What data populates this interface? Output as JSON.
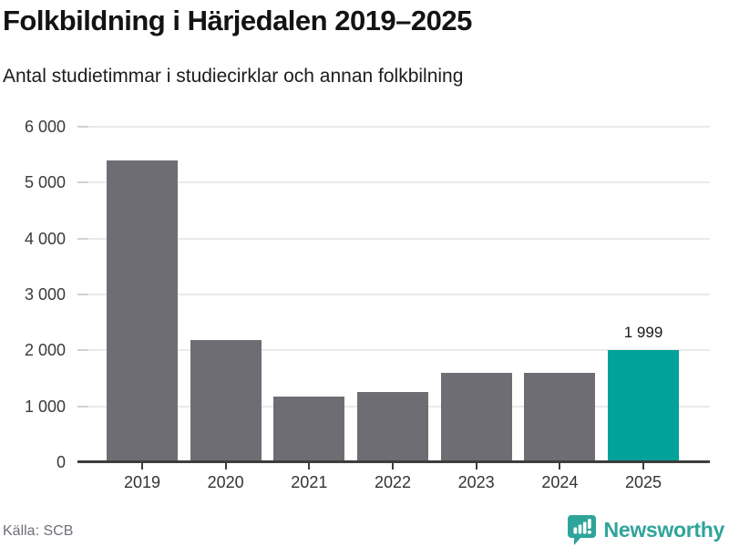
{
  "header": {
    "title": "Folkbildning i Härjedalen 2019–2025",
    "subtitle": "Antal studietimmar i studiecirklar och annan folkbilning"
  },
  "chart_data": {
    "type": "bar",
    "title": "Folkbildning i Härjedalen 2019–2025",
    "subtitle": "Antal studietimmar i studiecirklar och annan folkbilning",
    "categories": [
      "2019",
      "2020",
      "2021",
      "2022",
      "2023",
      "2024",
      "2025"
    ],
    "values": [
      5400,
      2190,
      1170,
      1260,
      1600,
      1600,
      1999
    ],
    "highlight_index": 6,
    "annotation": {
      "index": 6,
      "text": "1 999"
    },
    "ylim": [
      0,
      6000
    ],
    "yticks": [
      0,
      1000,
      2000,
      3000,
      4000,
      5000,
      6000
    ],
    "ytick_labels": [
      "0",
      "1 000",
      "2 000",
      "3 000",
      "4 000",
      "5 000",
      "6 000"
    ],
    "grid": "horizontal",
    "legend": "none",
    "xlabel": "",
    "ylabel": ""
  },
  "colors": {
    "bar": "#6e6d73",
    "highlight": "#00a29a",
    "brand_teal": "#2fa49b",
    "grid": "#eaeaea",
    "grid_tick": "#d2d2d2",
    "axis": "#3d3d3d",
    "label_text": "#3a3a3a"
  },
  "footer": {
    "source_label": "Källa: SCB",
    "brand_name": "Newsworthy",
    "brand_icon": "newsworthy-speech-bubble-barchart-icon"
  }
}
